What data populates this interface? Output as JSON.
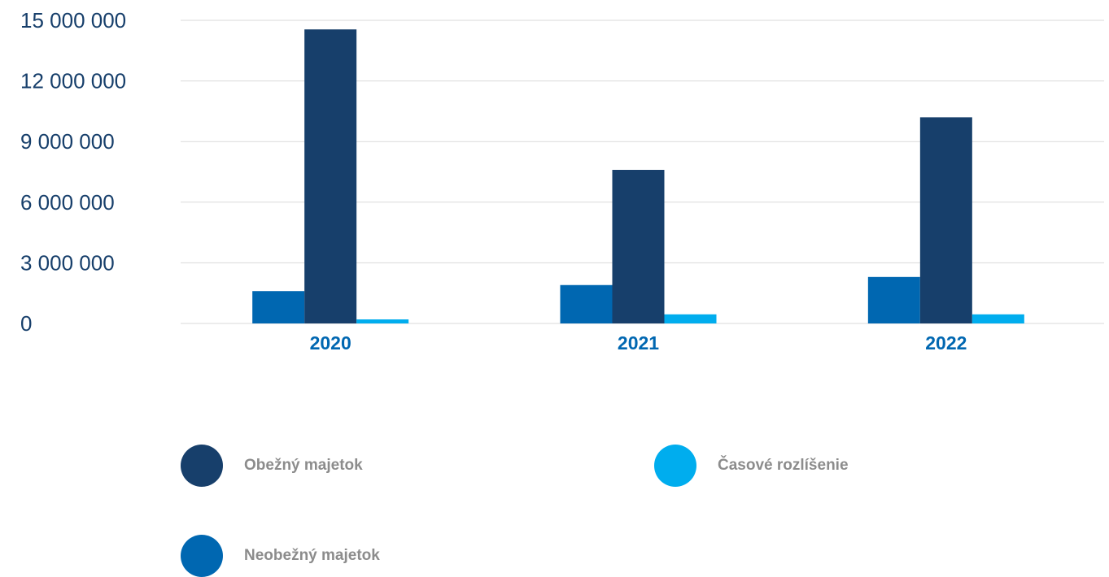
{
  "chart_data": {
    "type": "bar",
    "categories": [
      "2020",
      "2021",
      "2022"
    ],
    "series": [
      {
        "name": "Neobežný majetok",
        "color": "#0067b1",
        "values": [
          1600000,
          1900000,
          2300000
        ]
      },
      {
        "name": "Obežný majetok",
        "color": "#173f6b",
        "values": [
          14550000,
          7600000,
          10200000
        ]
      },
      {
        "name": "Časové rozlíšenie",
        "color": "#00adee",
        "values": [
          200000,
          450000,
          450000
        ]
      }
    ],
    "ylim": [
      0,
      15000000
    ],
    "yticks": [
      0,
      3000000,
      6000000,
      9000000,
      12000000,
      15000000
    ],
    "ytick_labels": [
      "0",
      "3 000 000",
      "6 000 000",
      "9 000 000",
      "12 000 000",
      "15 000 000"
    ],
    "grid": true,
    "legend_position": "bottom",
    "colors": {
      "axis_text": "#173f6b",
      "category_text": "#0067b1",
      "grid": "#d9d9d9",
      "legend_text": "#8c8c8c"
    }
  },
  "legend": {
    "items": [
      {
        "label": "Obežný majetok",
        "color": "#173f6b"
      },
      {
        "label": "Časové rozlíšenie",
        "color": "#00adee"
      },
      {
        "label": "Neobežný majetok",
        "color": "#0067b1"
      }
    ]
  }
}
